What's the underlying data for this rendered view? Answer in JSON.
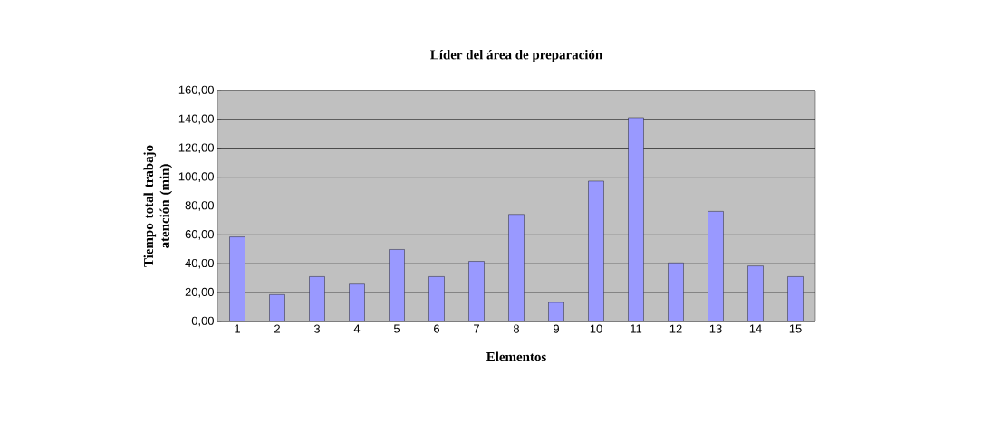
{
  "chart_data": {
    "type": "bar",
    "title": "Líder del área de preparación",
    "xlabel": "Elementos",
    "ylabel": "Tiempo total trabajo atención (min)",
    "categories": [
      "1",
      "2",
      "3",
      "4",
      "5",
      "6",
      "7",
      "8",
      "9",
      "10",
      "11",
      "12",
      "13",
      "14",
      "15"
    ],
    "values": [
      58.6,
      18.6,
      31.1,
      25.9,
      49.9,
      31.1,
      41.7,
      74.2,
      13.2,
      97.3,
      141.2,
      40.6,
      76.3,
      38.5,
      31.1
    ],
    "color": "#9999ff",
    "ylim": [
      0,
      160
    ],
    "yticks": [
      {
        "value": 0,
        "label": "0,00"
      },
      {
        "value": 20,
        "label": "20,00"
      },
      {
        "value": 40,
        "label": "40,00"
      },
      {
        "value": 60,
        "label": "60,00"
      },
      {
        "value": 80,
        "label": "80,00"
      },
      {
        "value": 100,
        "label": "100,00"
      },
      {
        "value": 120,
        "label": "120,00"
      },
      {
        "value": 140,
        "label": "140,00"
      },
      {
        "value": 160,
        "label": "160,00"
      }
    ],
    "grid": "y"
  }
}
